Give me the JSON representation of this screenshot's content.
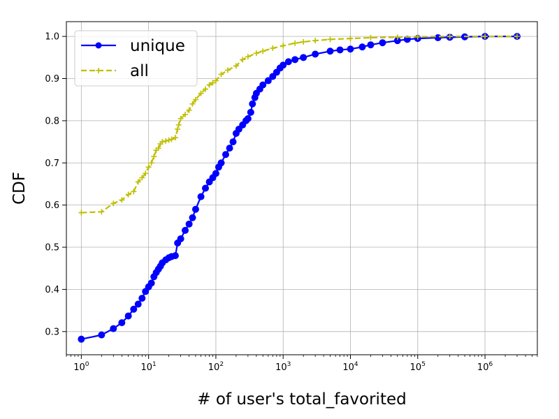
{
  "chart_data": {
    "type": "line",
    "title": "",
    "xlabel": "# of user's total_favorited",
    "ylabel": "CDF",
    "xscale": "log",
    "xlim": [
      0.6,
      6000000
    ],
    "ylim": [
      0.245,
      1.035
    ],
    "grid": true,
    "legend_position": "top-left",
    "x_ticks": [
      {
        "value": 1,
        "base": "10",
        "exp": "0"
      },
      {
        "value": 10,
        "base": "10",
        "exp": "1"
      },
      {
        "value": 100,
        "base": "10",
        "exp": "2"
      },
      {
        "value": 1000,
        "base": "10",
        "exp": "3"
      },
      {
        "value": 10000,
        "base": "10",
        "exp": "4"
      },
      {
        "value": 100000,
        "base": "10",
        "exp": "5"
      },
      {
        "value": 1000000,
        "base": "10",
        "exp": "6"
      }
    ],
    "y_ticks": [
      {
        "value": 0.3,
        "label": "0.3"
      },
      {
        "value": 0.4,
        "label": "0.4"
      },
      {
        "value": 0.5,
        "label": "0.5"
      },
      {
        "value": 0.6,
        "label": "0.6"
      },
      {
        "value": 0.7,
        "label": "0.7"
      },
      {
        "value": 0.8,
        "label": "0.8"
      },
      {
        "value": 0.9,
        "label": "0.9"
      },
      {
        "value": 1.0,
        "label": "1.0"
      }
    ],
    "series": [
      {
        "name": "unique",
        "color": "#0000ff",
        "style": "solid",
        "marker": "circle",
        "x": [
          1,
          2,
          3,
          4,
          5,
          6,
          7,
          8,
          9,
          10,
          11,
          12,
          13,
          14,
          15,
          16,
          18,
          20,
          22,
          25,
          27,
          30,
          35,
          40,
          45,
          50,
          60,
          70,
          80,
          90,
          100,
          110,
          120,
          140,
          160,
          180,
          200,
          220,
          250,
          280,
          300,
          330,
          350,
          380,
          400,
          450,
          500,
          600,
          700,
          800,
          900,
          1000,
          1200,
          1500,
          2000,
          3000,
          5000,
          7000,
          10000,
          15000,
          20000,
          30000,
          50000,
          70000,
          100000,
          200000,
          300000,
          500000,
          1000000,
          3000000
        ],
        "y": [
          0.282,
          0.292,
          0.307,
          0.321,
          0.337,
          0.353,
          0.365,
          0.379,
          0.395,
          0.406,
          0.415,
          0.43,
          0.44,
          0.448,
          0.455,
          0.463,
          0.47,
          0.475,
          0.478,
          0.48,
          0.51,
          0.52,
          0.54,
          0.555,
          0.57,
          0.59,
          0.62,
          0.64,
          0.655,
          0.665,
          0.675,
          0.69,
          0.7,
          0.72,
          0.735,
          0.75,
          0.77,
          0.78,
          0.79,
          0.8,
          0.805,
          0.82,
          0.84,
          0.855,
          0.865,
          0.875,
          0.885,
          0.895,
          0.905,
          0.915,
          0.925,
          0.932,
          0.94,
          0.945,
          0.95,
          0.958,
          0.965,
          0.968,
          0.97,
          0.975,
          0.98,
          0.985,
          0.99,
          0.993,
          0.995,
          0.997,
          0.998,
          0.999,
          1.0,
          1.0
        ]
      },
      {
        "name": "all",
        "color": "#bfbf00",
        "style": "dashed",
        "marker": "plus",
        "x": [
          1,
          2,
          3,
          4,
          5,
          6,
          7,
          8,
          9,
          10,
          11,
          12,
          13,
          14,
          15,
          16,
          18,
          20,
          22,
          25,
          27,
          28,
          30,
          35,
          40,
          45,
          50,
          60,
          70,
          80,
          90,
          100,
          120,
          150,
          200,
          250,
          300,
          400,
          500,
          700,
          1000,
          1500,
          2000,
          3000,
          5000,
          10000,
          20000,
          50000,
          100000,
          300000,
          1000000,
          3000000
        ],
        "y": [
          0.582,
          0.584,
          0.604,
          0.612,
          0.625,
          0.632,
          0.655,
          0.665,
          0.675,
          0.69,
          0.7,
          0.715,
          0.73,
          0.735,
          0.745,
          0.75,
          0.752,
          0.754,
          0.756,
          0.76,
          0.78,
          0.79,
          0.805,
          0.815,
          0.825,
          0.84,
          0.85,
          0.865,
          0.875,
          0.885,
          0.89,
          0.895,
          0.91,
          0.92,
          0.93,
          0.945,
          0.952,
          0.96,
          0.965,
          0.972,
          0.978,
          0.984,
          0.987,
          0.99,
          0.993,
          0.995,
          0.997,
          0.998,
          0.999,
          1.0,
          1.0,
          1.0
        ]
      }
    ]
  }
}
